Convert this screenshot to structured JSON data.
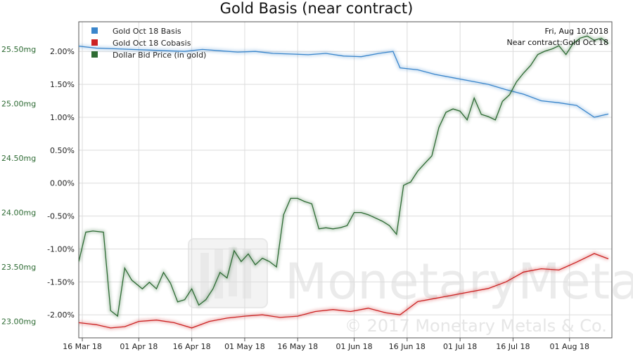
{
  "chart_data": {
    "type": "line",
    "title": "Gold Basis (near contract)",
    "x_labels": [
      "16 Mar 18",
      "01 Apr 18",
      "16 Apr 18",
      "01 May 18",
      "16 May 18",
      "01 Jun 18",
      "16 Jun 18",
      "01 Jul 18",
      "16 Jul 18",
      "01 Aug 18"
    ],
    "x_range": [
      "2018-03-15",
      "2018-08-13"
    ],
    "y_left": {
      "ticks": [
        "25.50mg",
        "25.00mg",
        "24.50mg",
        "24.00mg",
        "23.50mg",
        "23.00mg"
      ],
      "range": [
        22.85,
        25.75
      ],
      "color": "#2e6b34"
    },
    "y_right": {
      "ticks": [
        "2.00%",
        "1.50%",
        "1.00%",
        "0.50%",
        "0.00%",
        "-0.50%",
        "-1.00%",
        "-1.50%",
        "-2.00%"
      ],
      "range": [
        -2.35,
        2.45
      ],
      "unit": "%"
    },
    "grid": true,
    "legend_position": "top-left",
    "annotation": [
      "Fri, Aug 10,2018",
      "Near contract:Gold Oct 18"
    ],
    "watermark": [
      "MonetaryMetals",
      "© 2017 Monetary Metals & Co."
    ],
    "series": [
      {
        "name": "Gold Oct 18 Basis",
        "axis": "right",
        "color": "#3a86cc",
        "x": [
          "2018-03-15",
          "2018-03-20",
          "2018-03-25",
          "2018-03-30",
          "2018-04-04",
          "2018-04-09",
          "2018-04-14",
          "2018-04-19",
          "2018-04-24",
          "2018-04-29",
          "2018-05-04",
          "2018-05-09",
          "2018-05-14",
          "2018-05-19",
          "2018-05-24",
          "2018-05-29",
          "2018-06-03",
          "2018-06-08",
          "2018-06-12",
          "2018-06-14",
          "2018-06-19",
          "2018-06-24",
          "2018-06-29",
          "2018-07-04",
          "2018-07-09",
          "2018-07-14",
          "2018-07-19",
          "2018-07-24",
          "2018-07-29",
          "2018-08-03",
          "2018-08-08",
          "2018-08-12"
        ],
        "y": [
          2.08,
          2.05,
          2.04,
          2.03,
          2.02,
          2.01,
          2.0,
          2.03,
          2.01,
          1.99,
          2.0,
          1.97,
          1.96,
          1.95,
          1.97,
          1.93,
          1.92,
          1.97,
          2.0,
          1.75,
          1.72,
          1.65,
          1.6,
          1.55,
          1.5,
          1.42,
          1.35,
          1.25,
          1.22,
          1.18,
          1.0,
          1.05
        ]
      },
      {
        "name": "Gold Oct 18 Cobasis",
        "axis": "right",
        "color": "#cc2222",
        "x": [
          "2018-03-15",
          "2018-03-20",
          "2018-03-24",
          "2018-03-28",
          "2018-04-01",
          "2018-04-06",
          "2018-04-11",
          "2018-04-16",
          "2018-04-21",
          "2018-04-26",
          "2018-05-01",
          "2018-05-06",
          "2018-05-11",
          "2018-05-16",
          "2018-05-21",
          "2018-05-26",
          "2018-05-31",
          "2018-06-05",
          "2018-06-10",
          "2018-06-14",
          "2018-06-19",
          "2018-06-24",
          "2018-06-29",
          "2018-07-04",
          "2018-07-09",
          "2018-07-14",
          "2018-07-19",
          "2018-07-24",
          "2018-07-29",
          "2018-08-03",
          "2018-08-08",
          "2018-08-12"
        ],
        "y": [
          -2.12,
          -2.15,
          -2.2,
          -2.18,
          -2.1,
          -2.08,
          -2.12,
          -2.2,
          -2.1,
          -2.05,
          -2.02,
          -2.0,
          -2.04,
          -2.02,
          -1.95,
          -1.92,
          -1.95,
          -1.9,
          -1.97,
          -2.0,
          -1.8,
          -1.75,
          -1.7,
          -1.65,
          -1.6,
          -1.5,
          -1.35,
          -1.3,
          -1.32,
          -1.2,
          -1.07,
          -1.15
        ]
      },
      {
        "name": "Dollar Bid Price (in gold)",
        "axis": "left",
        "color": "#2e6b34",
        "x": [
          "2018-03-15",
          "2018-03-17",
          "2018-03-19",
          "2018-03-22",
          "2018-03-24",
          "2018-03-26",
          "2018-03-28",
          "2018-03-30",
          "2018-04-02",
          "2018-04-04",
          "2018-04-06",
          "2018-04-08",
          "2018-04-10",
          "2018-04-12",
          "2018-04-14",
          "2018-04-16",
          "2018-04-18",
          "2018-04-20",
          "2018-04-22",
          "2018-04-24",
          "2018-04-26",
          "2018-04-28",
          "2018-04-30",
          "2018-05-02",
          "2018-05-04",
          "2018-05-06",
          "2018-05-08",
          "2018-05-10",
          "2018-05-12",
          "2018-05-14",
          "2018-05-16",
          "2018-05-18",
          "2018-05-20",
          "2018-05-22",
          "2018-05-24",
          "2018-05-26",
          "2018-05-28",
          "2018-05-30",
          "2018-06-01",
          "2018-06-03",
          "2018-06-05",
          "2018-06-07",
          "2018-06-09",
          "2018-06-11",
          "2018-06-13",
          "2018-06-15",
          "2018-06-17",
          "2018-06-19",
          "2018-06-21",
          "2018-06-23",
          "2018-06-25",
          "2018-06-27",
          "2018-06-29",
          "2018-07-01",
          "2018-07-03",
          "2018-07-05",
          "2018-07-07",
          "2018-07-09",
          "2018-07-11",
          "2018-07-13",
          "2018-07-15",
          "2018-07-17",
          "2018-07-19",
          "2018-07-21",
          "2018-07-23",
          "2018-07-25",
          "2018-07-27",
          "2018-07-29",
          "2018-07-31",
          "2018-08-02",
          "2018-08-04",
          "2018-08-06",
          "2018-08-08",
          "2018-08-10",
          "2018-08-12"
        ],
        "y": [
          23.55,
          23.82,
          23.83,
          23.82,
          23.1,
          23.05,
          23.49,
          23.38,
          23.3,
          23.36,
          23.3,
          23.45,
          23.35,
          23.18,
          23.2,
          23.3,
          23.15,
          23.2,
          23.3,
          23.45,
          23.4,
          23.65,
          23.55,
          23.62,
          23.52,
          23.58,
          23.55,
          23.5,
          23.98,
          24.13,
          24.13,
          24.1,
          24.08,
          23.85,
          23.86,
          23.85,
          23.86,
          23.88,
          24.0,
          24.0,
          23.98,
          23.95,
          23.92,
          23.88,
          23.8,
          24.25,
          24.28,
          24.38,
          24.45,
          24.52,
          24.78,
          24.92,
          24.95,
          24.93,
          24.85,
          25.05,
          24.9,
          24.88,
          24.85,
          25.02,
          25.08,
          25.2,
          25.28,
          25.35,
          25.45,
          25.48,
          25.5,
          25.53,
          25.45,
          25.55,
          25.6,
          25.62,
          25.58,
          25.6,
          25.55
        ]
      }
    ]
  }
}
